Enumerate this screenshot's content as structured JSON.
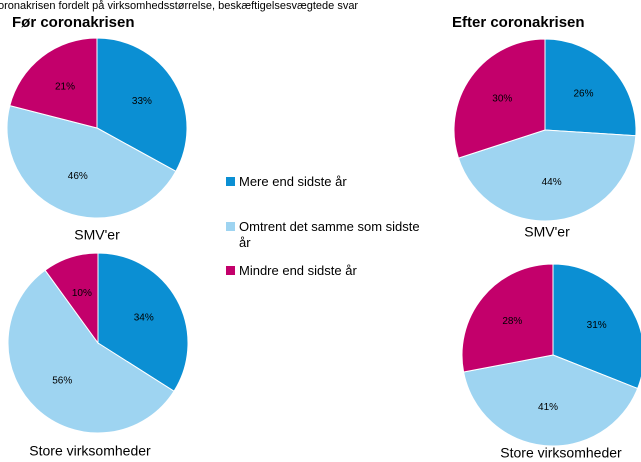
{
  "caption": "oronakrisen fordelt på virksomhedsstørrelse, beskæftigelsesvægtede svar",
  "headings": [
    "Før coronakrisen",
    "Efter coronakrisen"
  ],
  "legend": {
    "labels": [
      "Mere end sidste år",
      "Omtrent det samme som sidste år",
      "Mindre end sidste år"
    ],
    "colors": [
      "#0b8fd3",
      "#9ed4f1",
      "#c3006b"
    ]
  },
  "chart_data": [
    {
      "type": "pie",
      "label": "SMV'er",
      "values": [
        33,
        46,
        21
      ],
      "value_labels": [
        "33%",
        "46%",
        "21%"
      ]
    },
    {
      "type": "pie",
      "label": "Store virksomheder",
      "values": [
        34,
        56,
        10
      ],
      "value_labels": [
        "34%",
        "56%",
        "10%"
      ]
    },
    {
      "type": "pie",
      "label": "SMV'er",
      "values": [
        26,
        44,
        30
      ],
      "value_labels": [
        "26%",
        "44%",
        "30%"
      ]
    },
    {
      "type": "pie",
      "label": "Store virksomheder",
      "values": [
        31,
        41,
        28
      ],
      "value_labels": [
        "31%",
        "41%",
        "28%"
      ]
    }
  ]
}
